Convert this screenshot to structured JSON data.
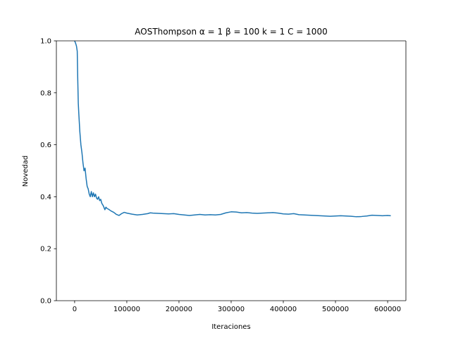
{
  "chart_data": {
    "type": "line",
    "title": "AOSThompson α = 1 β = 100 k = 1 C = 1000",
    "xlabel": "Iteraciones",
    "ylabel": "Novedad",
    "xlim": [
      -35000,
      635000
    ],
    "ylim": [
      0.0,
      1.0
    ],
    "xticks": [
      0,
      100000,
      200000,
      300000,
      400000,
      500000,
      600000
    ],
    "yticks": [
      0.0,
      0.2,
      0.4,
      0.6,
      0.8,
      1.0
    ],
    "xtick_labels": [
      "0",
      "100000",
      "200000",
      "300000",
      "400000",
      "500000",
      "600000"
    ],
    "ytick_labels": [
      "0.0",
      "0.2",
      "0.4",
      "0.6",
      "0.8",
      "1.0"
    ],
    "grid": false,
    "line_color": "#1f77b4",
    "series": [
      {
        "x": [
          0,
          2000,
          3500,
          5000,
          6000,
          7000,
          8000,
          10000,
          12000,
          14000,
          16000,
          18000,
          20000,
          22000,
          24000,
          26000,
          28000,
          30000,
          32000,
          34000,
          36000,
          38000,
          40000,
          42000,
          44000,
          46000,
          48000,
          50000,
          52000,
          55000,
          58000,
          60000,
          62000,
          65000,
          70000,
          75000,
          80000,
          85000,
          90000,
          95000,
          100000,
          110000,
          120000,
          130000,
          140000,
          145000,
          150000,
          160000,
          170000,
          180000,
          190000,
          200000,
          210000,
          220000,
          230000,
          240000,
          250000,
          260000,
          270000,
          280000,
          290000,
          300000,
          310000,
          320000,
          330000,
          340000,
          350000,
          360000,
          370000,
          380000,
          390000,
          400000,
          410000,
          420000,
          430000,
          440000,
          450000,
          460000,
          470000,
          480000,
          490000,
          500000,
          510000,
          520000,
          530000,
          540000,
          550000,
          560000,
          570000,
          580000,
          590000,
          600000,
          605000
        ],
        "y": [
          1.0,
          0.99,
          0.98,
          0.96,
          0.85,
          0.76,
          0.72,
          0.65,
          0.6,
          0.57,
          0.53,
          0.5,
          0.51,
          0.47,
          0.44,
          0.43,
          0.41,
          0.4,
          0.42,
          0.4,
          0.415,
          0.4,
          0.41,
          0.395,
          0.39,
          0.4,
          0.385,
          0.39,
          0.375,
          0.365,
          0.35,
          0.36,
          0.355,
          0.352,
          0.345,
          0.34,
          0.332,
          0.328,
          0.335,
          0.34,
          0.337,
          0.333,
          0.33,
          0.332,
          0.335,
          0.338,
          0.337,
          0.336,
          0.335,
          0.334,
          0.335,
          0.332,
          0.33,
          0.328,
          0.33,
          0.332,
          0.33,
          0.331,
          0.33,
          0.332,
          0.338,
          0.342,
          0.341,
          0.338,
          0.339,
          0.337,
          0.336,
          0.337,
          0.338,
          0.339,
          0.337,
          0.334,
          0.333,
          0.335,
          0.331,
          0.33,
          0.329,
          0.328,
          0.327,
          0.326,
          0.325,
          0.326,
          0.327,
          0.326,
          0.325,
          0.323,
          0.324,
          0.326,
          0.329,
          0.328,
          0.327,
          0.328,
          0.327
        ]
      }
    ]
  }
}
